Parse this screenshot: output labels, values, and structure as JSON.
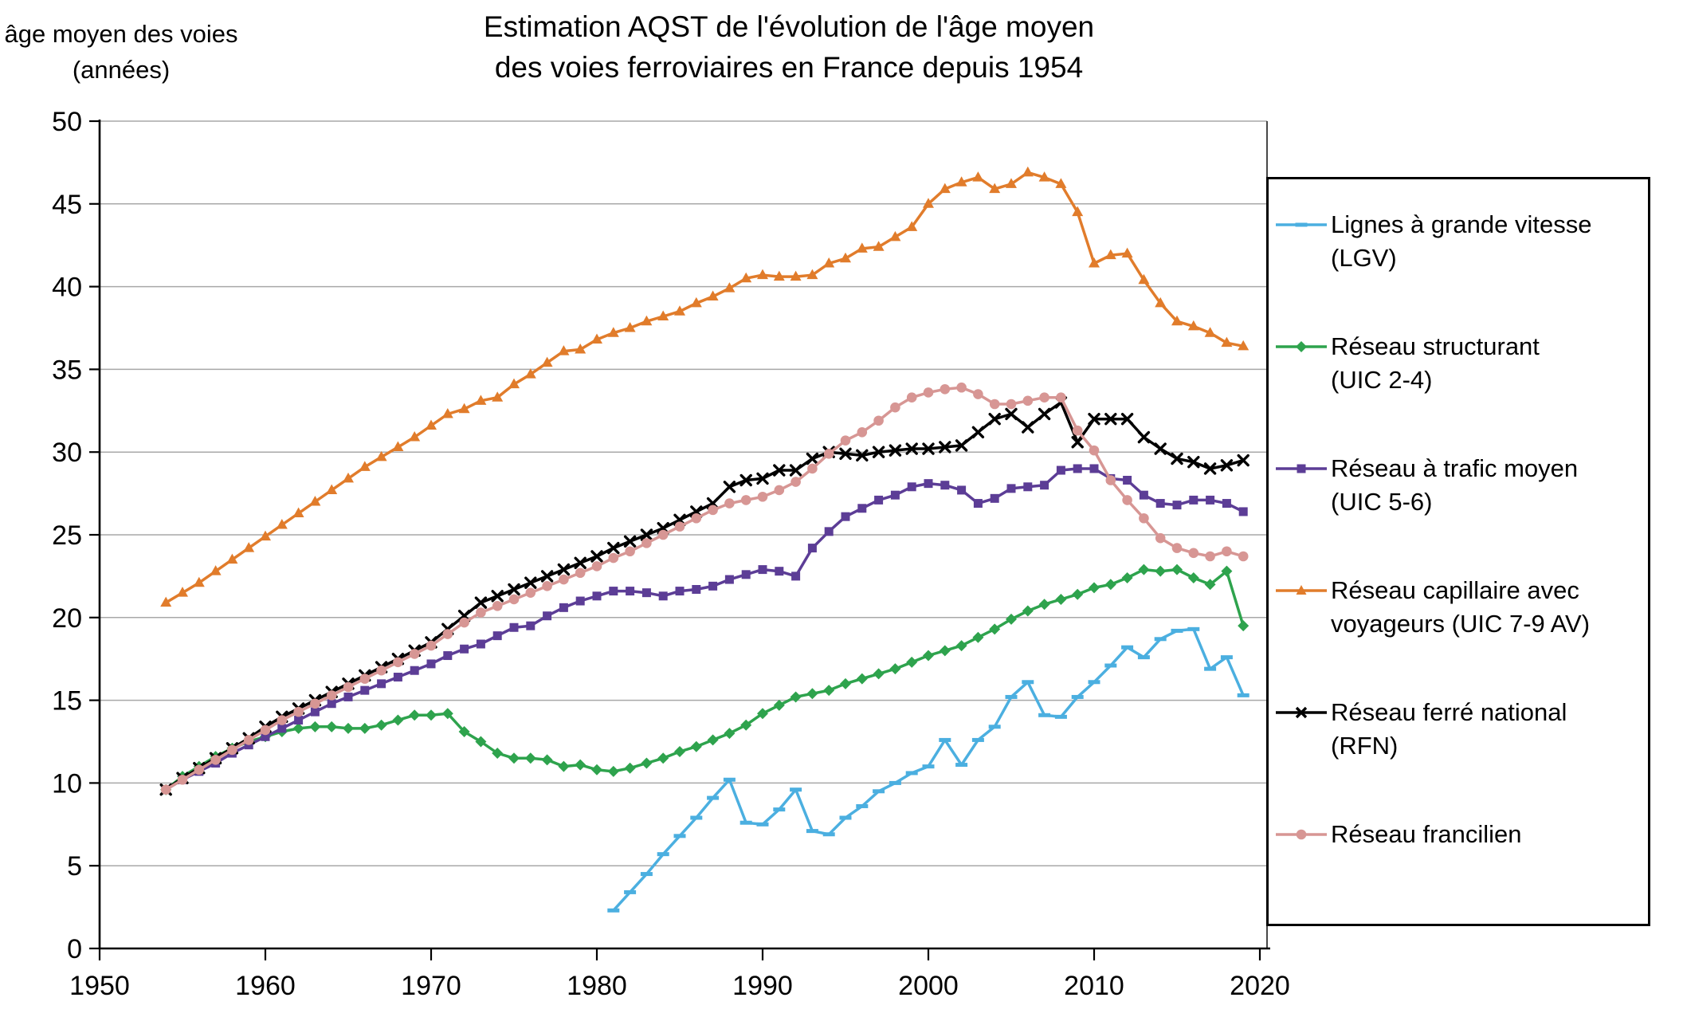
{
  "title": {
    "line1": "Estimation AQST de l'évolution de l'âge moyen",
    "line2": "des voies ferroviaires en France depuis 1954"
  },
  "y_axis": {
    "label_line1": "âge moyen des voies",
    "label_line2": "(années)",
    "ticks": [
      0,
      5,
      10,
      15,
      20,
      25,
      30,
      35,
      40,
      45,
      50
    ]
  },
  "x_axis": {
    "ticks": [
      1950,
      1960,
      1970,
      1980,
      1990,
      2000,
      2010,
      2020
    ]
  },
  "colors": {
    "grid": "#A8A8A8",
    "axis": "#000000",
    "lgv_blue": "#4BAFE0",
    "structurant_green": "#2EA34D",
    "trafic_moyen_purple": "#5C3D96",
    "capillaire_orange": "#E17C2B",
    "rfn_black": "#000000",
    "francilien_pink": "#D79694"
  },
  "chart_data": {
    "type": "line",
    "title": "Estimation AQST de l'évolution de l'âge moyen des voies ferroviaires en France depuis 1954",
    "xlabel": "",
    "ylabel": "âge moyen des voies (années)",
    "xlim": [
      1950,
      2020.7
    ],
    "ylim": [
      0,
      50
    ],
    "grid": "horizontal-only",
    "legend_position": "right",
    "series": [
      {
        "name": "Réseau capillaire avec voyageurs (UIC 7-9 AV)",
        "legend_lines": [
          "Réseau capillaire avec",
          "voyageurs (UIC 7-9 AV)"
        ],
        "color": "#E17C2B",
        "marker": "triangle",
        "start_year": 1954,
        "values": [
          20.9,
          21.5,
          22.1,
          22.8,
          23.5,
          24.2,
          24.9,
          25.6,
          26.3,
          27.0,
          27.7,
          28.4,
          29.1,
          29.7,
          30.3,
          30.9,
          31.6,
          32.3,
          32.6,
          33.1,
          33.3,
          34.1,
          34.7,
          35.4,
          36.1,
          36.2,
          36.8,
          37.2,
          37.5,
          37.9,
          38.2,
          38.5,
          39.0,
          39.4,
          39.9,
          40.5,
          40.7,
          40.6,
          40.6,
          40.7,
          41.4,
          41.7,
          42.3,
          42.4,
          43.0,
          43.6,
          45.0,
          45.9,
          46.3,
          46.6,
          45.9,
          46.2,
          46.9,
          46.6,
          46.2,
          44.5,
          41.4,
          41.9,
          42.0,
          40.4,
          39.0,
          37.9,
          37.6,
          37.2,
          36.6,
          36.4
        ]
      },
      {
        "name": "Réseau structurant (UIC 2-4)",
        "legend_lines": [
          "Réseau structurant",
          "(UIC 2-4)"
        ],
        "color": "#2EA34D",
        "marker": "diamond",
        "start_year": 1954,
        "values": [
          9.6,
          10.4,
          11.0,
          11.6,
          12.1,
          12.5,
          12.8,
          13.1,
          13.3,
          13.4,
          13.4,
          13.3,
          13.3,
          13.5,
          13.8,
          14.1,
          14.1,
          14.2,
          13.1,
          12.5,
          11.8,
          11.5,
          11.5,
          11.4,
          11.0,
          11.1,
          10.8,
          10.7,
          10.9,
          11.2,
          11.5,
          11.9,
          12.2,
          12.6,
          13.0,
          13.5,
          14.2,
          14.7,
          15.2,
          15.4,
          15.6,
          16.0,
          16.3,
          16.6,
          16.9,
          17.3,
          17.7,
          18.0,
          18.3,
          18.8,
          19.3,
          19.9,
          20.4,
          20.8,
          21.1,
          21.4,
          21.8,
          22.0,
          22.4,
          22.9,
          22.8,
          22.9,
          22.4,
          22.0,
          22.8,
          19.5
        ]
      },
      {
        "name": "Réseau à trafic moyen (UIC 5-6)",
        "legend_lines": [
          "Réseau à trafic moyen",
          "(UIC 5-6)"
        ],
        "color": "#5C3D96",
        "marker": "square",
        "start_year": 1954,
        "values": [
          9.6,
          10.2,
          10.7,
          11.2,
          11.8,
          12.3,
          12.8,
          13.3,
          13.8,
          14.3,
          14.8,
          15.2,
          15.6,
          16.0,
          16.4,
          16.8,
          17.2,
          17.7,
          18.1,
          18.4,
          18.9,
          19.4,
          19.5,
          20.1,
          20.6,
          21.0,
          21.3,
          21.6,
          21.6,
          21.5,
          21.3,
          21.6,
          21.7,
          21.9,
          22.3,
          22.6,
          22.9,
          22.8,
          22.5,
          24.2,
          25.2,
          26.1,
          26.6,
          27.1,
          27.4,
          27.9,
          28.1,
          28.0,
          27.7,
          26.9,
          27.2,
          27.8,
          27.9,
          28.0,
          28.9,
          29.0,
          29.0,
          28.4,
          28.3,
          27.4,
          26.9,
          26.8,
          27.1,
          27.1,
          26.9,
          26.4
        ]
      },
      {
        "name": "Réseau ferré national (RFN)",
        "legend_lines": [
          "Réseau ferré national",
          "(RFN)"
        ],
        "color": "#000000",
        "marker": "x",
        "start_year": 1954,
        "values": [
          9.6,
          10.3,
          10.9,
          11.5,
          12.1,
          12.7,
          13.4,
          14.0,
          14.5,
          15.0,
          15.5,
          16.0,
          16.5,
          17.0,
          17.5,
          18.0,
          18.5,
          19.3,
          20.1,
          20.9,
          21.3,
          21.7,
          22.1,
          22.5,
          22.9,
          23.3,
          23.7,
          24.2,
          24.6,
          25.0,
          25.4,
          25.9,
          26.4,
          26.9,
          27.9,
          28.3,
          28.4,
          28.9,
          28.9,
          29.6,
          30.0,
          29.9,
          29.8,
          30.0,
          30.1,
          30.2,
          30.2,
          30.3,
          30.4,
          31.2,
          32.0,
          32.3,
          31.5,
          32.3,
          33.0,
          30.6,
          32.0,
          32.0,
          32.0,
          30.9,
          30.2,
          29.6,
          29.4,
          29.0,
          29.2,
          29.5
        ]
      },
      {
        "name": "Réseau francilien",
        "legend_lines": [
          "Réseau francilien"
        ],
        "color": "#D79694",
        "marker": "circle",
        "start_year": 1954,
        "values": [
          9.6,
          10.2,
          10.8,
          11.4,
          12.0,
          12.6,
          13.2,
          13.8,
          14.3,
          14.8,
          15.3,
          15.8,
          16.3,
          16.8,
          17.3,
          17.8,
          18.3,
          19.0,
          19.7,
          20.3,
          20.7,
          21.1,
          21.5,
          21.9,
          22.3,
          22.7,
          23.1,
          23.6,
          24.0,
          24.5,
          25.0,
          25.5,
          26.0,
          26.5,
          26.9,
          27.1,
          27.3,
          27.7,
          28.2,
          29.0,
          29.9,
          30.7,
          31.2,
          31.9,
          32.7,
          33.3,
          33.6,
          33.8,
          33.9,
          33.5,
          32.9,
          32.9,
          33.1,
          33.3,
          33.3,
          31.3,
          30.1,
          28.3,
          27.1,
          26.0,
          24.8,
          24.2,
          23.9,
          23.7,
          24.0,
          23.7
        ]
      },
      {
        "name": "Lignes à grande vitesse (LGV)",
        "legend_lines": [
          "Lignes à grande vitesse",
          "(LGV)"
        ],
        "color": "#4BAFE0",
        "marker": "dash",
        "start_year": 1981,
        "values": [
          2.3,
          3.4,
          4.5,
          5.7,
          6.8,
          7.9,
          9.1,
          10.2,
          7.6,
          7.5,
          8.4,
          9.6,
          7.1,
          6.9,
          7.9,
          8.6,
          9.5,
          10.0,
          10.6,
          11.0,
          12.6,
          11.1,
          12.6,
          13.4,
          15.2,
          16.1,
          14.1,
          14.0,
          15.2,
          16.1,
          17.1,
          18.2,
          17.6,
          18.7,
          19.2,
          19.3,
          16.9,
          17.6,
          15.3
        ]
      }
    ],
    "legend_order": [
      5,
      1,
      2,
      0,
      3,
      4
    ]
  }
}
